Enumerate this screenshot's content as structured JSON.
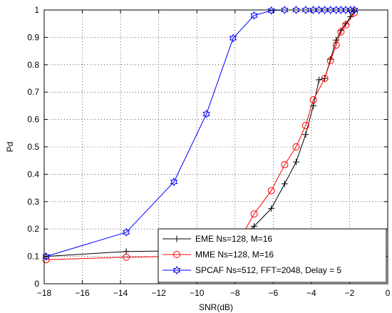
{
  "chart_data": {
    "type": "line",
    "title": "",
    "xlabel": "SNR(dB)",
    "ylabel": "Pd",
    "xlim": [
      -18,
      0
    ],
    "ylim": [
      0,
      1
    ],
    "xticks": [
      -18,
      -16,
      -14,
      -12,
      -10,
      -8,
      -6,
      -4,
      -2,
      0
    ],
    "yticks": [
      0,
      0.1,
      0.2,
      0.3,
      0.4,
      0.5,
      0.6,
      0.7,
      0.8,
      0.9,
      1
    ],
    "grid": true,
    "legend_position": "bottom-right",
    "series": [
      {
        "name": "EME Ns=128, M=16",
        "color": "#000000",
        "marker": "plus",
        "x": [
          -17.9,
          -13.7,
          -11.2,
          -9.5,
          -8.1,
          -7.0,
          -6.1,
          -5.4,
          -4.8,
          -4.3,
          -3.9,
          -3.6,
          -3.3,
          -3.0,
          -2.7,
          -2.45,
          -2.2,
          -1.95,
          -1.75
        ],
        "y": [
          0.1,
          0.118,
          0.12,
          0.12,
          0.14,
          0.21,
          0.275,
          0.365,
          0.445,
          0.545,
          0.65,
          0.745,
          0.75,
          0.82,
          0.89,
          0.925,
          0.95,
          0.975,
          0.995
        ]
      },
      {
        "name": "MME Ns=128, M=16",
        "color": "#ff0000",
        "marker": "circle",
        "x": [
          -17.9,
          -13.7,
          -11.2,
          -9.5,
          -8.1,
          -7.0,
          -6.1,
          -5.4,
          -4.8,
          -4.3,
          -3.9,
          -3.3,
          -3.0,
          -2.7,
          -2.45,
          -2.2,
          -1.75
        ],
        "y": [
          0.088,
          0.097,
          0.1,
          0.1,
          0.12,
          0.255,
          0.34,
          0.435,
          0.5,
          0.578,
          0.672,
          0.75,
          0.815,
          0.872,
          0.92,
          0.945,
          0.99
        ]
      },
      {
        "name": "SPCAF Ns=512, FFT=2048, Delay = 5",
        "color": "#0000ff",
        "marker": "hexagram",
        "x": [
          -17.9,
          -13.7,
          -11.2,
          -9.5,
          -8.1,
          -7.0,
          -6.1,
          -5.4,
          -4.8,
          -4.3,
          -3.9,
          -3.6,
          -3.3,
          -3.0,
          -2.7,
          -2.45,
          -2.2,
          -1.95,
          -1.75
        ],
        "y": [
          0.1,
          0.188,
          0.372,
          0.62,
          0.897,
          0.98,
          0.998,
          1.0,
          1.0,
          1.0,
          1.0,
          1.0,
          1.0,
          1.0,
          1.0,
          1.0,
          1.0,
          1.0,
          1.0
        ]
      }
    ]
  }
}
